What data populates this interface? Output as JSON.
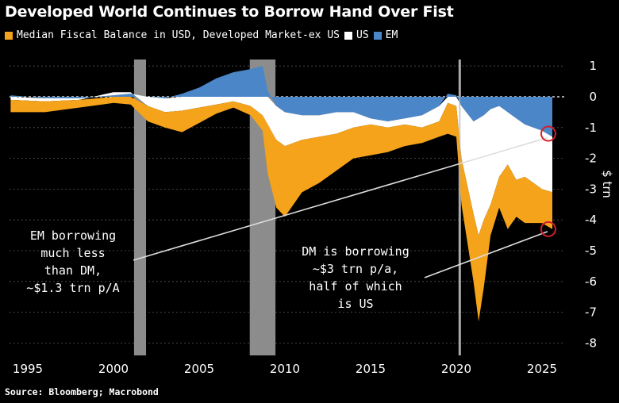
{
  "title": "Developed World Continues to Borrow Hand Over Fist",
  "source": "Source: Bloomberg; Macrobond",
  "colors": {
    "dm_ex_us": "#f5a31a",
    "us": "#ffffff",
    "em": "#4a86c8",
    "recession": "#8c8c8c",
    "highlight": "#d0202a",
    "background": "#000000"
  },
  "chart_data": {
    "type": "area",
    "stacked": true,
    "title": "Developed World Continues to Borrow Hand Over Fist",
    "ylabel": "$ trn",
    "ylim": [
      -8,
      1
    ],
    "xlim": [
      1993.9,
      2026.3
    ],
    "grid": true,
    "legend_placement": "top-left",
    "x_ticks": [
      "1995",
      "2000",
      "2005",
      "2010",
      "2015",
      "2020",
      "2025"
    ],
    "y_ticks": [
      "1",
      "0",
      "-1",
      "-2",
      "-3",
      "-4",
      "-5",
      "-6",
      "-7",
      "-8"
    ],
    "x": [
      1994,
      1996,
      1998,
      2000,
      2001,
      2002,
      2003,
      2004,
      2005,
      2006,
      2007,
      2008,
      2008.7,
      2009,
      2009.5,
      2010,
      2011,
      2012,
      2013,
      2014,
      2015,
      2016,
      2017,
      2018,
      2019,
      2019.5,
      2020,
      2020.3,
      2021,
      2021.3,
      2021.6,
      2022,
      2022.5,
      2023,
      2023.5,
      2024,
      2025,
      2025.6
    ],
    "series": [
      {
        "name": "Median Fiscal Balance in USD, Developed Market-ex US",
        "color": "#f5a31a",
        "values": [
          -0.4,
          -0.35,
          -0.25,
          -0.2,
          -0.25,
          -0.5,
          -0.5,
          -0.7,
          -0.5,
          -0.3,
          -0.2,
          -0.3,
          -0.5,
          -1.6,
          -2.2,
          -2.3,
          -1.7,
          -1.5,
          -1.2,
          -1.0,
          -1.0,
          -0.8,
          -0.7,
          -0.5,
          -0.5,
          -1.0,
          -1.0,
          -1.5,
          -2.2,
          -2.8,
          -2.2,
          -1.0,
          -1.0,
          -2.1,
          -1.2,
          -1.5,
          -1.1,
          -1.2
        ]
      },
      {
        "name": "US",
        "color": "#ffffff",
        "values": [
          -0.1,
          -0.1,
          -0.05,
          0.1,
          0.05,
          -0.3,
          -0.45,
          -0.45,
          -0.35,
          -0.25,
          -0.15,
          -0.3,
          -0.6,
          -0.9,
          -1.1,
          -1.1,
          -0.8,
          -0.7,
          -0.7,
          -0.5,
          -0.2,
          -0.2,
          -0.2,
          -0.4,
          -0.5,
          -0.2,
          -0.3,
          -1.7,
          -3.0,
          -3.8,
          -3.4,
          -3.1,
          -2.3,
          -1.7,
          -2.0,
          -1.7,
          -1.9,
          -1.8
        ]
      },
      {
        "name": "EM",
        "color": "#4a86c8",
        "values": [
          0.05,
          -0.05,
          -0.05,
          0.05,
          0.1,
          0.0,
          -0.05,
          0.1,
          0.3,
          0.6,
          0.8,
          0.9,
          1.0,
          0.2,
          -0.3,
          -0.5,
          -0.6,
          -0.6,
          -0.5,
          -0.5,
          -0.7,
          -0.8,
          -0.7,
          -0.6,
          -0.3,
          0.1,
          0.05,
          -0.3,
          -0.8,
          -0.7,
          -0.6,
          -0.4,
          -0.3,
          -0.5,
          -0.7,
          -0.9,
          -1.1,
          -1.3
        ]
      }
    ],
    "recessions": [
      [
        2001.2,
        2001.9
      ],
      [
        2007.95,
        2009.45
      ]
    ],
    "event_lines": [
      2020.2
    ],
    "annotations": [
      {
        "lines": [
          "EM borrowing",
          "much less",
          "than DM,",
          "~$1.3 trn p/A"
        ],
        "points_to": [
          2025.6,
          -1.2
        ]
      },
      {
        "lines": [
          "DM is borrowing",
          "~$3 trn p/a,",
          "half of which",
          "is US"
        ],
        "points_to": [
          2025.6,
          -4.3
        ]
      }
    ]
  }
}
